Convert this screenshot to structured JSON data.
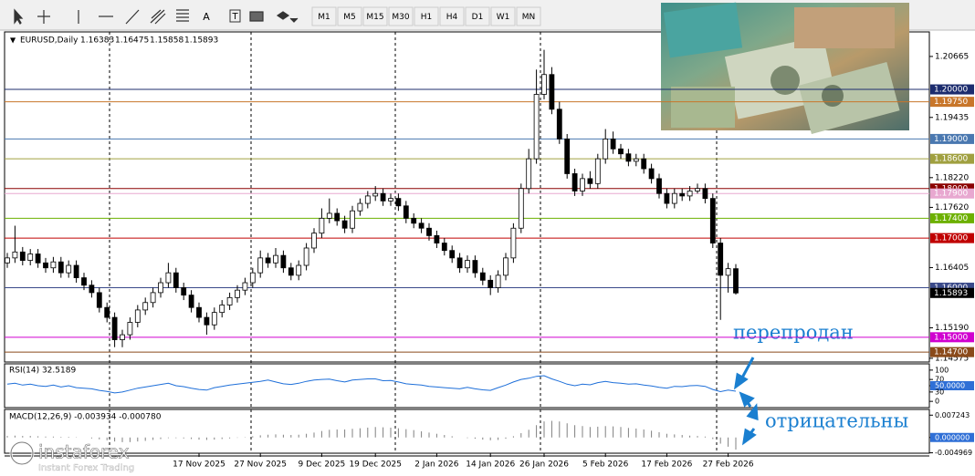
{
  "toolbar": {
    "tools": [
      "A",
      "T"
    ],
    "timeframes": [
      "M1",
      "M5",
      "M15",
      "M30",
      "H1",
      "H4",
      "D1",
      "W1",
      "MN"
    ]
  },
  "chart_data": {
    "type": "candlestick",
    "symbol": "EURUSD,Daily",
    "categories": [
      null,
      null,
      null,
      null,
      null,
      null,
      null,
      null,
      null,
      null,
      null,
      null,
      null,
      null,
      null,
      null,
      null,
      null,
      null,
      null,
      null,
      null,
      null,
      null,
      null,
      "17 Nov 2025",
      null,
      null,
      null,
      null,
      null,
      null,
      null,
      "27 Nov 2025",
      null,
      null,
      null,
      null,
      null,
      null,
      null,
      "9 Dec 2025",
      null,
      null,
      null,
      null,
      null,
      null,
      "19 Dec 2025",
      null,
      null,
      null,
      null,
      null,
      null,
      null,
      "2 Jan 2026",
      null,
      null,
      null,
      null,
      null,
      null,
      "14 Jan 2026",
      null,
      null,
      null,
      null,
      null,
      null,
      "26 Jan 2026",
      null,
      null,
      null,
      null,
      null,
      null,
      null,
      "5 Feb 2026",
      null,
      null,
      null,
      null,
      null,
      null,
      null,
      "17 Feb 2026",
      null,
      null,
      null,
      null,
      null,
      null,
      null,
      "27 Feb 2026",
      null
    ],
    "ohlc": [
      [
        1.165,
        1.167,
        1.164,
        1.166
      ],
      [
        1.166,
        1.1725,
        1.165,
        1.1672
      ],
      [
        1.1672,
        1.1682,
        1.1645,
        1.1655
      ],
      [
        1.1655,
        1.1678,
        1.1645,
        1.1668
      ],
      [
        1.1668,
        1.1678,
        1.164,
        1.165
      ],
      [
        1.165,
        1.166,
        1.163,
        1.164
      ],
      [
        1.164,
        1.1662,
        1.163,
        1.1652
      ],
      [
        1.1652,
        1.1662,
        1.162,
        1.163
      ],
      [
        1.163,
        1.1655,
        1.162,
        1.1645
      ],
      [
        1.1645,
        1.1655,
        1.161,
        1.162
      ],
      [
        1.162,
        1.163,
        1.1595,
        1.1605
      ],
      [
        1.1605,
        1.1615,
        1.158,
        1.159
      ],
      [
        1.159,
        1.16,
        1.155,
        1.156
      ],
      [
        1.156,
        1.157,
        1.153,
        1.154
      ],
      [
        1.154,
        1.155,
        1.148,
        1.1495
      ],
      [
        1.1495,
        1.1515,
        1.148,
        1.1505
      ],
      [
        1.1505,
        1.154,
        1.1495,
        1.153
      ],
      [
        1.153,
        1.1565,
        1.152,
        1.1555
      ],
      [
        1.1555,
        1.158,
        1.1545,
        1.157
      ],
      [
        1.157,
        1.16,
        1.156,
        1.159
      ],
      [
        1.159,
        1.162,
        1.158,
        1.161
      ],
      [
        1.161,
        1.165,
        1.16,
        1.163
      ],
      [
        1.163,
        1.164,
        1.159,
        1.16
      ],
      [
        1.16,
        1.161,
        1.1575,
        1.1585
      ],
      [
        1.1585,
        1.1595,
        1.155,
        1.156
      ],
      [
        1.156,
        1.157,
        1.153,
        1.154
      ],
      [
        1.154,
        1.155,
        1.1505,
        1.1525
      ],
      [
        1.1525,
        1.156,
        1.1515,
        1.155
      ],
      [
        1.155,
        1.1575,
        1.154,
        1.1565
      ],
      [
        1.1565,
        1.159,
        1.1555,
        1.158
      ],
      [
        1.158,
        1.1605,
        1.157,
        1.1595
      ],
      [
        1.1595,
        1.162,
        1.1585,
        1.161
      ],
      [
        1.161,
        1.164,
        1.16,
        1.163
      ],
      [
        1.163,
        1.1675,
        1.162,
        1.166
      ],
      [
        1.166,
        1.167,
        1.164,
        1.165
      ],
      [
        1.165,
        1.168,
        1.164,
        1.1665
      ],
      [
        1.1665,
        1.1675,
        1.163,
        1.164
      ],
      [
        1.164,
        1.165,
        1.1615,
        1.1625
      ],
      [
        1.1625,
        1.1655,
        1.1615,
        1.1645
      ],
      [
        1.1645,
        1.169,
        1.1635,
        1.168
      ],
      [
        1.168,
        1.172,
        1.167,
        1.171
      ],
      [
        1.171,
        1.176,
        1.17,
        1.174
      ],
      [
        1.174,
        1.178,
        1.173,
        1.175
      ],
      [
        1.175,
        1.176,
        1.1725,
        1.1735
      ],
      [
        1.1735,
        1.1745,
        1.171,
        1.172
      ],
      [
        1.172,
        1.1765,
        1.171,
        1.1755
      ],
      [
        1.1755,
        1.178,
        1.1745,
        1.177
      ],
      [
        1.177,
        1.1795,
        1.176,
        1.1785
      ],
      [
        1.1785,
        1.1805,
        1.1775,
        1.179
      ],
      [
        1.179,
        1.18,
        1.1765,
        1.1775
      ],
      [
        1.1775,
        1.179,
        1.1765,
        1.178
      ],
      [
        1.178,
        1.179,
        1.1755,
        1.1765
      ],
      [
        1.1765,
        1.1775,
        1.173,
        1.174
      ],
      [
        1.174,
        1.175,
        1.172,
        1.173
      ],
      [
        1.173,
        1.174,
        1.171,
        1.172
      ],
      [
        1.172,
        1.173,
        1.1695,
        1.1705
      ],
      [
        1.1705,
        1.1715,
        1.168,
        1.169
      ],
      [
        1.169,
        1.17,
        1.1665,
        1.1675
      ],
      [
        1.1675,
        1.1685,
        1.165,
        1.166
      ],
      [
        1.166,
        1.167,
        1.163,
        1.164
      ],
      [
        1.164,
        1.1665,
        1.163,
        1.1655
      ],
      [
        1.1655,
        1.1665,
        1.162,
        1.163
      ],
      [
        1.163,
        1.164,
        1.1605,
        1.1615
      ],
      [
        1.1615,
        1.1625,
        1.1585,
        1.16
      ],
      [
        1.16,
        1.1635,
        1.159,
        1.1625
      ],
      [
        1.1625,
        1.167,
        1.1615,
        1.166
      ],
      [
        1.166,
        1.173,
        1.165,
        1.172
      ],
      [
        1.172,
        1.181,
        1.171,
        1.18
      ],
      [
        1.18,
        1.188,
        1.179,
        1.186
      ],
      [
        1.186,
        1.204,
        1.185,
        1.199
      ],
      [
        1.199,
        1.208,
        1.198,
        1.203
      ],
      [
        1.203,
        1.2045,
        1.195,
        1.196
      ],
      [
        1.196,
        1.1975,
        1.189,
        1.19
      ],
      [
        1.19,
        1.191,
        1.182,
        1.183
      ],
      [
        1.183,
        1.184,
        1.1785,
        1.1795
      ],
      [
        1.1795,
        1.183,
        1.1785,
        1.182
      ],
      [
        1.182,
        1.1835,
        1.18,
        1.181
      ],
      [
        1.181,
        1.187,
        1.18,
        1.186
      ],
      [
        1.186,
        1.192,
        1.185,
        1.19
      ],
      [
        1.19,
        1.1915,
        1.187,
        1.188
      ],
      [
        1.188,
        1.189,
        1.186,
        1.187
      ],
      [
        1.187,
        1.188,
        1.1845,
        1.1855
      ],
      [
        1.1855,
        1.187,
        1.1845,
        1.186
      ],
      [
        1.186,
        1.187,
        1.183,
        1.184
      ],
      [
        1.184,
        1.185,
        1.181,
        1.182
      ],
      [
        1.182,
        1.183,
        1.178,
        1.179
      ],
      [
        1.179,
        1.18,
        1.176,
        1.177
      ],
      [
        1.177,
        1.18,
        1.176,
        1.179
      ],
      [
        1.179,
        1.18,
        1.1775,
        1.1785
      ],
      [
        1.1785,
        1.1805,
        1.1775,
        1.1795
      ],
      [
        1.1795,
        1.181,
        1.179,
        1.18
      ],
      [
        1.18,
        1.181,
        1.177,
        1.178
      ],
      [
        1.178,
        1.179,
        1.168,
        1.169
      ],
      [
        1.169,
        1.17,
        1.1535,
        1.1625
      ],
      [
        1.1625,
        1.165,
        1.159,
        1.16383
      ],
      [
        1.16383,
        1.16475,
        1.15858,
        1.15893
      ]
    ],
    "ylim": [
      1.145,
      1.2116
    ],
    "yticks": [
      {
        "value": 1.20665,
        "label": "1.20665"
      },
      {
        "value": 1.19435,
        "label": "1.19435"
      },
      {
        "value": 1.1822,
        "label": "1.18220"
      },
      {
        "value": 1.1762,
        "label": "1.17620"
      },
      {
        "value": 1.16405,
        "label": "1.16405"
      },
      {
        "value": 1.1519,
        "label": "1.15190"
      },
      {
        "value": 1.14575,
        "label": "1.14575"
      }
    ],
    "levels": [
      {
        "value": 1.2,
        "label": "1.20000",
        "color": "#1c2c6e"
      },
      {
        "value": 1.1975,
        "label": "1.19750",
        "color": "#c8762a"
      },
      {
        "value": 1.19,
        "label": "1.19000",
        "color": "#4a78b0"
      },
      {
        "value": 1.186,
        "label": "1.18600",
        "color": "#a0a040"
      },
      {
        "value": 1.18,
        "label": "1.18000",
        "color": "#8b0000"
      },
      {
        "value": 1.179,
        "label": "1.17900",
        "color": "#e8a8d0"
      },
      {
        "value": 1.174,
        "label": "1.17400",
        "color": "#6cb000"
      },
      {
        "value": 1.17,
        "label": "1.17000",
        "color": "#c00000"
      },
      {
        "value": 1.16,
        "label": "1.16000",
        "color": "#3a4a8a"
      },
      {
        "value": 1.15,
        "label": "1.15000",
        "color": "#d000d0"
      },
      {
        "value": 1.147,
        "label": "1.14700",
        "color": "#8a4a1a"
      }
    ],
    "bull_color": "#ffffff",
    "bear_color": "#000000"
  },
  "annotations": [
    "перепродан",
    "отрицательны"
  ],
  "rsi": {
    "title": "RSI(14) 32.5189",
    "color": "#1e6fd9",
    "ylim": [
      -20,
      120
    ],
    "yticks": [
      100,
      70,
      {
        "value": 50,
        "label": "50.0000"
      },
      30,
      0
    ],
    "values": [
      55,
      58,
      52,
      55,
      50,
      48,
      52,
      46,
      50,
      44,
      42,
      40,
      35,
      32,
      27,
      30,
      36,
      42,
      46,
      50,
      54,
      58,
      50,
      47,
      42,
      38,
      36,
      44,
      48,
      52,
      55,
      58,
      61,
      64,
      68,
      62,
      56,
      54,
      58,
      64,
      68,
      70,
      71,
      66,
      62,
      68,
      70,
      72,
      72,
      66,
      67,
      62,
      56,
      54,
      52,
      48,
      46,
      44,
      42,
      40,
      45,
      40,
      37,
      35,
      44,
      52,
      62,
      70,
      74,
      80,
      82,
      72,
      64,
      55,
      50,
      55,
      53,
      60,
      64,
      60,
      58,
      55,
      56,
      52,
      49,
      45,
      42,
      48,
      47,
      50,
      51,
      48,
      38,
      31,
      36,
      32.5189
    ]
  },
  "macd": {
    "title": "MACD(12,26,9) -0.003934 -0.000780",
    "color": "#808080",
    "ylim": [
      -0.0051,
      0.0091
    ],
    "yticks": [
      0.007243,
      {
        "value": 0,
        "label": "0.000000"
      },
      -0.004969
    ],
    "values": [
      0.0005,
      0.0006,
      0.0005,
      0.0005,
      0.0004,
      0.0003,
      0.0003,
      0.0002,
      0.0002,
      0.0001,
      0.0,
      -0.0003,
      -0.0006,
      -0.0009,
      -0.0013,
      -0.0015,
      -0.0015,
      -0.0013,
      -0.0011,
      -0.0008,
      -0.0005,
      -0.0002,
      -0.0002,
      -0.0003,
      -0.0005,
      -0.0007,
      -0.0008,
      -0.0007,
      -0.0005,
      -0.0003,
      -0.0001,
      0.0001,
      0.0004,
      0.0007,
      0.0009,
      0.001,
      0.0009,
      0.0008,
      0.0009,
      0.0012,
      0.0016,
      0.0021,
      0.0025,
      0.0026,
      0.0026,
      0.0028,
      0.003,
      0.0032,
      0.0034,
      0.0033,
      0.0032,
      0.003,
      0.0027,
      0.0024,
      0.002,
      0.0016,
      0.0012,
      0.0008,
      0.0004,
      0.0,
      -0.0002,
      -0.0004,
      -0.0007,
      -0.0009,
      -0.0008,
      -0.0004,
      0.0004,
      0.0014,
      0.0025,
      0.004,
      0.0052,
      0.0054,
      0.0052,
      0.0046,
      0.004,
      0.0037,
      0.0034,
      0.0035,
      0.0037,
      0.0036,
      0.0034,
      0.0031,
      0.0029,
      0.0026,
      0.0022,
      0.0017,
      0.0012,
      0.001,
      0.0008,
      0.0006,
      0.0005,
      0.0003,
      -0.0005,
      -0.002,
      -0.003,
      -0.003934
    ]
  },
  "watermark": {
    "brand": "instaforex",
    "tagline": "Instant Forex Trading"
  }
}
